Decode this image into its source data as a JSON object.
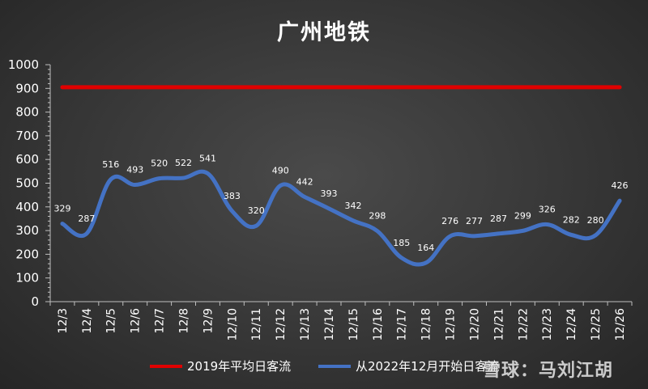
{
  "chart_data": {
    "type": "line",
    "title": "广州地铁",
    "categories": [
      "12/3",
      "12/4",
      "12/5",
      "12/6",
      "12/7",
      "12/8",
      "12/9",
      "12/10",
      "12/11",
      "12/12",
      "12/13",
      "12/14",
      "12/15",
      "12/16",
      "12/17",
      "12/18",
      "12/19",
      "12/20",
      "12/21",
      "12/22",
      "12/23",
      "12/24",
      "12/25",
      "12/26"
    ],
    "series": [
      {
        "name": "2019年平均日客流",
        "color": "#e00000",
        "values": [
          905,
          905,
          905,
          905,
          905,
          905,
          905,
          905,
          905,
          905,
          905,
          905,
          905,
          905,
          905,
          905,
          905,
          905,
          905,
          905,
          905,
          905,
          905,
          905
        ],
        "labels": false
      },
      {
        "name": "从2022年12月开始日客流",
        "color": "#4472c4",
        "values": [
          329,
          287,
          516,
          493,
          520,
          522,
          541,
          383,
          320,
          490,
          442,
          393,
          342,
          298,
          185,
          164,
          276,
          277,
          287,
          299,
          326,
          282,
          280,
          426
        ],
        "labels": true
      }
    ],
    "ylim": [
      0,
      1000
    ],
    "yticks": [
      0,
      100,
      200,
      300,
      400,
      500,
      600,
      700,
      800,
      900,
      1000
    ],
    "grid": false,
    "legend": "bottom"
  },
  "watermark": "雪球：马刘江胡"
}
